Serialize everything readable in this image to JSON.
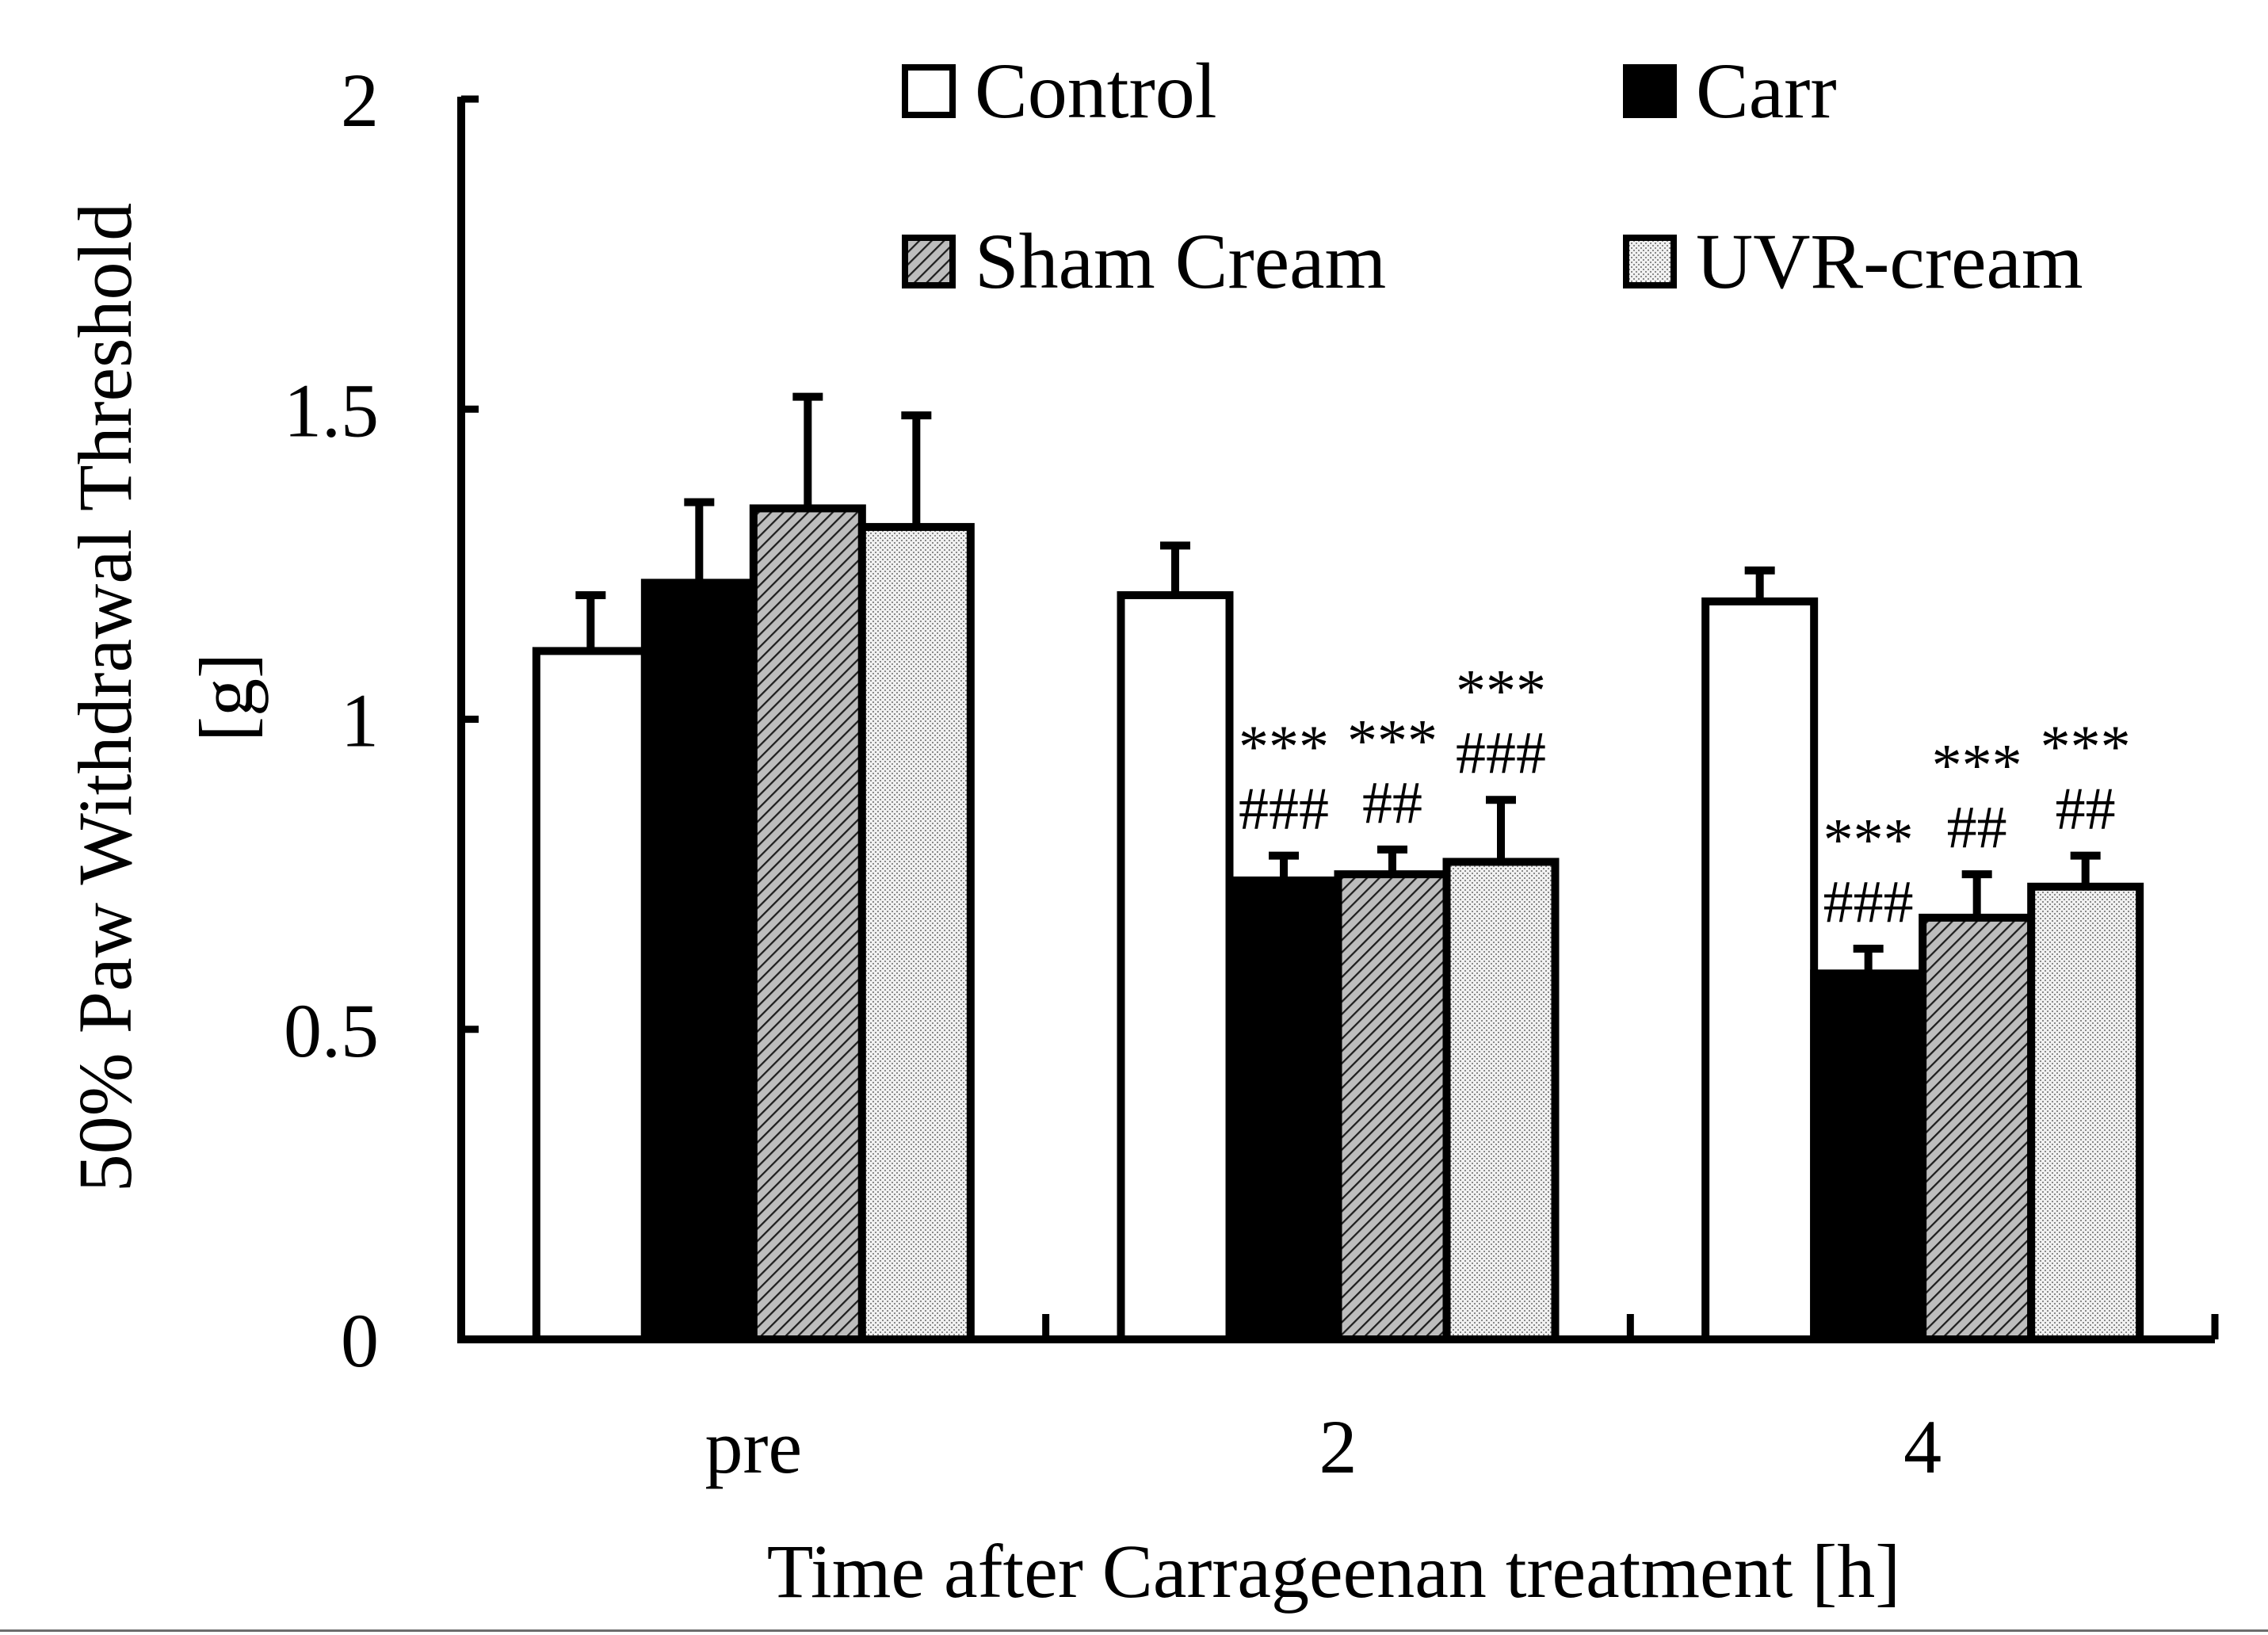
{
  "chart_data": {
    "type": "bar",
    "title": "",
    "xlabel": "Time after Carrageenan treatment [h]",
    "ylabel_line1": "50% Paw Withdrawal Threshold",
    "ylabel_line2": "[g]",
    "ylim": [
      0,
      2
    ],
    "yticks": [
      0,
      0.5,
      1,
      1.5,
      2
    ],
    "ytick_labels": [
      "0",
      "0.5",
      "1",
      "1.5",
      "2"
    ],
    "categories": [
      "pre",
      "2",
      "4"
    ],
    "legend_position": "top-right",
    "series": [
      {
        "name": "Control",
        "pattern": "white",
        "values": [
          1.11,
          1.2,
          1.19
        ],
        "errors": [
          0.09,
          0.08,
          0.05
        ],
        "annotations": [
          [],
          [],
          []
        ]
      },
      {
        "name": "Carr",
        "pattern": "black",
        "values": [
          1.22,
          0.74,
          0.59
        ],
        "errors": [
          0.13,
          0.04,
          0.04
        ],
        "annotations": [
          [],
          [
            "###",
            "***"
          ],
          [
            "###",
            "***"
          ]
        ]
      },
      {
        "name": "Sham Cream",
        "pattern": "hatch",
        "values": [
          1.34,
          0.75,
          0.68
        ],
        "errors": [
          0.18,
          0.04,
          0.07
        ],
        "annotations": [
          [],
          [
            "##",
            "***"
          ],
          [
            "##",
            "***"
          ]
        ]
      },
      {
        "name": "UVR-cream",
        "pattern": "dots",
        "values": [
          1.31,
          0.77,
          0.73
        ],
        "errors": [
          0.18,
          0.1,
          0.05
        ],
        "annotations": [
          [],
          [
            "###",
            "***"
          ],
          [
            "##",
            "***"
          ]
        ]
      }
    ]
  }
}
